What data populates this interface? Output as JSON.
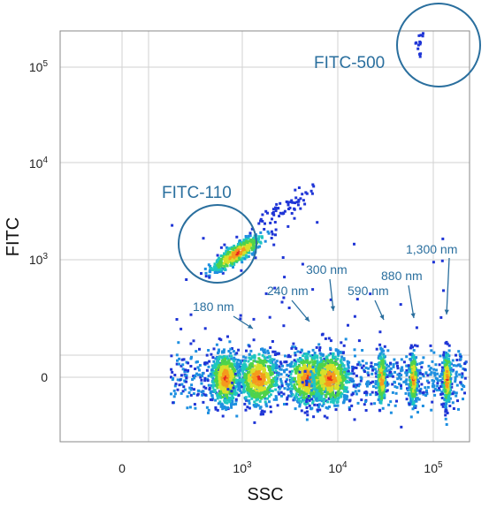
{
  "chart_data": {
    "type": "scatter",
    "plot_style": "density dot plot",
    "xlabel": "SSC",
    "ylabel": "FITC",
    "x_scale": "biexponential",
    "y_scale": "biexponential",
    "x_ticks": [
      {
        "value": 0,
        "label": "0"
      },
      {
        "value": 1000,
        "label": "10",
        "sup": "3"
      },
      {
        "value": 10000,
        "label": "10",
        "sup": "4"
      },
      {
        "value": 100000,
        "label": "10",
        "sup": "5"
      }
    ],
    "y_ticks": [
      {
        "value": 0,
        "label": "0"
      },
      {
        "value": 1000,
        "label": "10",
        "sup": "3"
      },
      {
        "value": 10000,
        "label": "10",
        "sup": "4"
      },
      {
        "value": 100000,
        "label": "10",
        "sup": "5"
      }
    ],
    "grid": true,
    "colormap": [
      "#1f35d6",
      "#1e8fe0",
      "#1fc7c0",
      "#4ed34b",
      "#d7e02a",
      "#f59a1d",
      "#e8281d"
    ],
    "populations": [
      {
        "label": "",
        "ssc": 350,
        "fitc": 0,
        "color": "#e8281d"
      },
      {
        "label": "180 nm",
        "ssc": 1450,
        "fitc": 0,
        "color": "#f59a1d"
      },
      {
        "label": "240 nm",
        "ssc": 4700,
        "fitc": 0,
        "color": "#e9b52a"
      },
      {
        "label": "300 nm",
        "ssc": 8100,
        "fitc": 0,
        "color": "#b9df3a"
      },
      {
        "label": "590 nm",
        "ssc": 28000,
        "fitc": 0,
        "color": "#4ed34b"
      },
      {
        "label": "880 nm",
        "ssc": 60000,
        "fitc": 0,
        "color": "#4ed34b"
      },
      {
        "label": "1,300 nm",
        "ssc": 135000,
        "fitc": 0,
        "color": "#d7e02a"
      },
      {
        "label": "FITC-110",
        "ssc": 680,
        "fitc": 1200,
        "color": "#f59a1d"
      },
      {
        "label": "FITC-500",
        "ssc": 110000,
        "fitc": 180000,
        "color": "#e8281d"
      }
    ],
    "annotations": {
      "fitc_110": "FITC-110",
      "fitc_500": "FITC-500"
    }
  }
}
